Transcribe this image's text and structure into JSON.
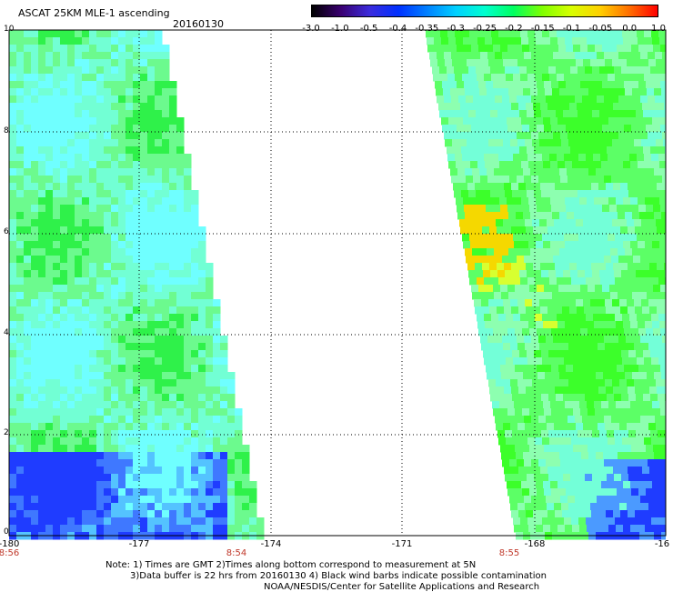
{
  "header": {
    "title": "ASCAT 25KM MLE-1 ascending",
    "date": "20160130"
  },
  "colorbar": {
    "labels": [
      "-3.0",
      "-1.0",
      "-0.5",
      "-0.4",
      "-0.35",
      "-0.3",
      "-0.25",
      "-0.2",
      "-0.15",
      "-0.1",
      "-0.05",
      "0.0",
      "1.0"
    ],
    "colors": [
      "#000000",
      "#3a0070",
      "#3b2bdc",
      "#0030ff",
      "#0080ff",
      "#00d0ff",
      "#00ffcf",
      "#00ff60",
      "#80ff00",
      "#d8ff00",
      "#ffd000",
      "#ff7000",
      "#ff0000"
    ]
  },
  "axes": {
    "y_ticks": [
      "10",
      "8",
      "6",
      "4",
      "2",
      "0"
    ],
    "x_ticks": [
      "-180",
      "-177",
      "-174",
      "-171",
      "-168",
      "-16"
    ]
  },
  "times": [
    "8:56",
    "8:54",
    "8:55"
  ],
  "notes": {
    "line1": "Note: 1) Times are GMT 2)Times along bottom correspond to measurement at 5N",
    "line2": "3)Data buffer is 22 hrs from 20160130 4) Black wind barbs indicate possible contamination",
    "line3": "NOAA/NESDIS/Center for Satellite Applications and Research"
  }
}
